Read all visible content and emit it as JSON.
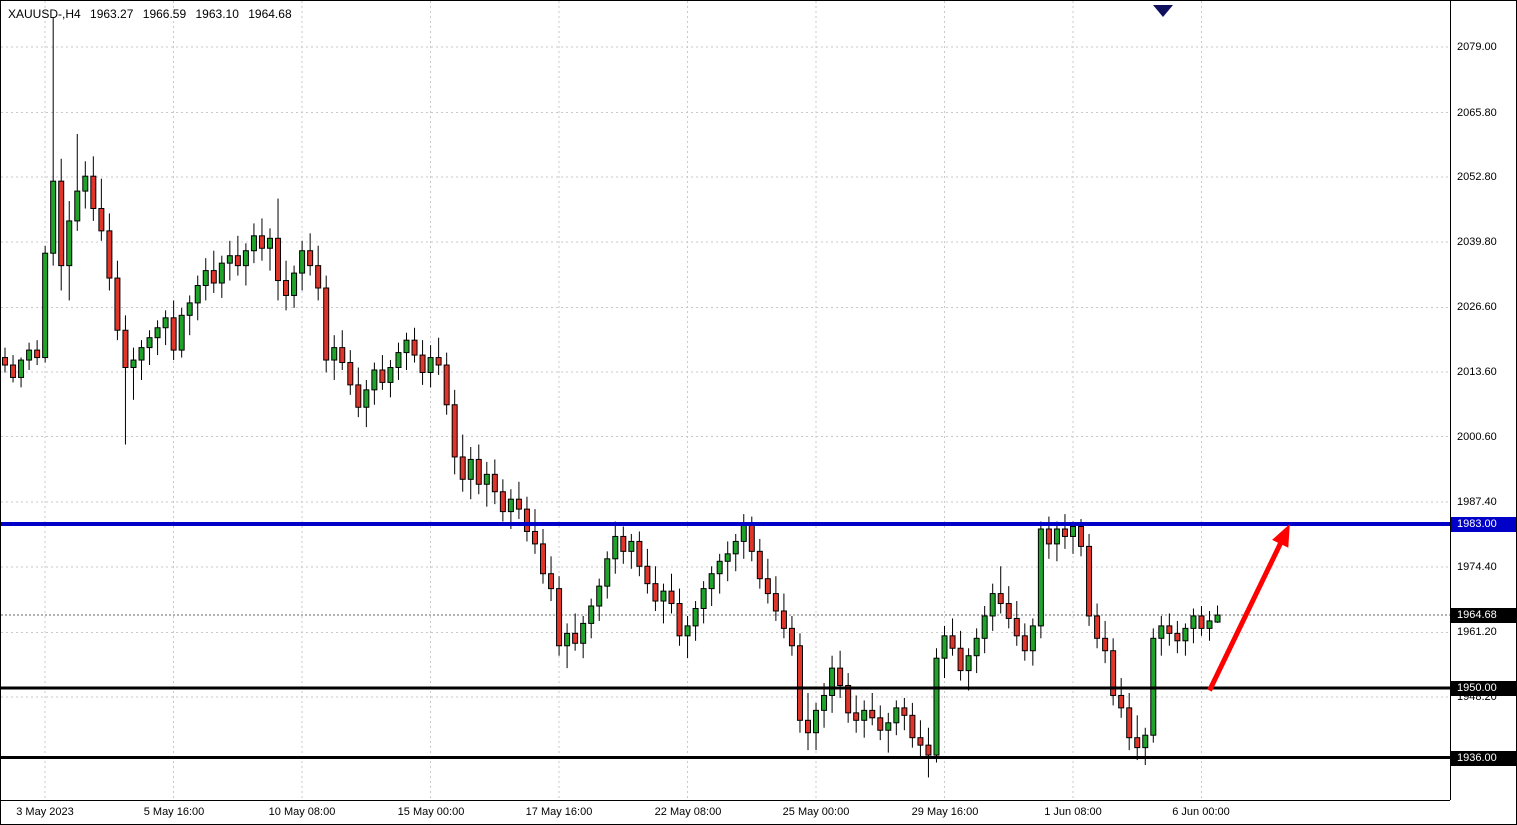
{
  "header": {
    "title": "XAUUSD-,H4",
    "open": "1963.27",
    "high": "1966.59",
    "low": "1963.10",
    "close": "1964.68"
  },
  "colors": {
    "background": "#FFFFFF",
    "candle_up": "#1FA32B",
    "candle_down": "#E0352B",
    "candle_border": "#000000",
    "grid": "#C9C9C9",
    "current_price_line": "#666666",
    "current_price_badge": "#000000",
    "arrow": "#FF0000",
    "shift_marker": "#10105E",
    "axis_text": "#000000"
  },
  "chart_data": {
    "type": "candlestick",
    "title": "XAUUSD-,H4",
    "symbol": "XAUUSD-",
    "timeframe": "H4",
    "last": {
      "open": 1963.27,
      "high": 1966.59,
      "low": 1963.1,
      "close": 1964.68
    },
    "visible_price_range": [
      1927,
      2086
    ],
    "grid": true,
    "price_ticks": [
      {
        "label": "2079.00",
        "value": 2079.0
      },
      {
        "label": "2065.80",
        "value": 2065.8
      },
      {
        "label": "2052.80",
        "value": 2052.8
      },
      {
        "label": "2039.80",
        "value": 2039.8
      },
      {
        "label": "2026.60",
        "value": 2026.6
      },
      {
        "label": "2013.60",
        "value": 2013.6
      },
      {
        "label": "2000.60",
        "value": 2000.6
      },
      {
        "label": "1987.40",
        "value": 1987.4
      },
      {
        "label": "1974.40",
        "value": 1974.4
      },
      {
        "label": "1961.20",
        "value": 1961.2
      },
      {
        "label": "1948.20",
        "value": 1948.2
      }
    ],
    "time_ticks": [
      {
        "label": "3 May 2023",
        "index": 5
      },
      {
        "label": "5 May 16:00",
        "index": 21
      },
      {
        "label": "10 May 08:00",
        "index": 37
      },
      {
        "label": "15 May 00:00",
        "index": 53
      },
      {
        "label": "17 May 16:00",
        "index": 69
      },
      {
        "label": "22 May 08:00",
        "index": 85
      },
      {
        "label": "25 May 00:00",
        "index": 101
      },
      {
        "label": "29 May 16:00",
        "index": 117
      },
      {
        "label": "1 Jun 08:00",
        "index": 133
      },
      {
        "label": "6 Jun 00:00",
        "index": 149
      }
    ],
    "levels": [
      {
        "label": "1983.00",
        "value": 1983.0,
        "color": "#0000C8",
        "text_color": "#FFFFFF",
        "thickness": 4,
        "name": "resistance-line-1983"
      },
      {
        "label": "1950.00",
        "value": 1950.0,
        "color": "#000000",
        "text_color": "#FFFFFF",
        "thickness": 3,
        "name": "support-line-1950"
      },
      {
        "label": "1936.00",
        "value": 1936.0,
        "color": "#000000",
        "text_color": "#FFFFFF",
        "thickness": 3,
        "name": "support-line-1936"
      }
    ],
    "current_price": {
      "label": "1964.68",
      "value": 1964.68
    },
    "arrow": {
      "from_index": 150,
      "from_price": 1949.5,
      "to_index": 160,
      "to_price": 1983.0,
      "color": "#FF0000"
    },
    "ohlc": [
      [
        2016.5,
        2018.5,
        2013.5,
        2015.0
      ],
      [
        2015.0,
        2017.0,
        2011.5,
        2012.5
      ],
      [
        2012.5,
        2016.5,
        2010.5,
        2016.0
      ],
      [
        2016.0,
        2019.5,
        2014.0,
        2018.0
      ],
      [
        2018.0,
        2020.0,
        2015.0,
        2016.5
      ],
      [
        2016.5,
        2039.0,
        2015.5,
        2037.5
      ],
      [
        2037.5,
        2085.0,
        2035.0,
        2052.0
      ],
      [
        2052.0,
        2056.5,
        2030.0,
        2035.0
      ],
      [
        2035.0,
        2048.0,
        2028.0,
        2044.0
      ],
      [
        2044.0,
        2061.5,
        2042.0,
        2050.0
      ],
      [
        2050.0,
        2056.0,
        2046.5,
        2053.0
      ],
      [
        2053.0,
        2057.0,
        2044.0,
        2046.5
      ],
      [
        2046.5,
        2052.5,
        2040.0,
        2042.0
      ],
      [
        2042.0,
        2045.5,
        2030.0,
        2032.5
      ],
      [
        2032.5,
        2036.0,
        2020.0,
        2022.0
      ],
      [
        2022.0,
        2025.0,
        1999.0,
        2014.5
      ],
      [
        2014.5,
        2018.5,
        2008.0,
        2016.0
      ],
      [
        2016.0,
        2020.0,
        2012.0,
        2018.5
      ],
      [
        2018.5,
        2022.0,
        2015.0,
        2020.5
      ],
      [
        2020.5,
        2024.0,
        2017.0,
        2022.5
      ],
      [
        2022.5,
        2026.0,
        2019.0,
        2024.5
      ],
      [
        2024.5,
        2028.0,
        2016.0,
        2018.0
      ],
      [
        2018.0,
        2026.5,
        2016.5,
        2025.0
      ],
      [
        2025.0,
        2029.0,
        2021.0,
        2027.5
      ],
      [
        2027.5,
        2033.0,
        2024.0,
        2031.0
      ],
      [
        2031.0,
        2036.5,
        2028.0,
        2034.0
      ],
      [
        2034.0,
        2038.0,
        2029.5,
        2031.5
      ],
      [
        2031.5,
        2037.0,
        2028.5,
        2035.5
      ],
      [
        2035.5,
        2040.0,
        2032.0,
        2037.0
      ],
      [
        2037.0,
        2041.0,
        2033.0,
        2035.0
      ],
      [
        2035.0,
        2039.5,
        2031.0,
        2038.0
      ],
      [
        2038.0,
        2043.5,
        2035.5,
        2041.0
      ],
      [
        2041.0,
        2044.5,
        2036.0,
        2038.5
      ],
      [
        2038.5,
        2042.5,
        2034.0,
        2040.5
      ],
      [
        2040.5,
        2048.5,
        2028.0,
        2032.0
      ],
      [
        2032.0,
        2036.0,
        2026.0,
        2029.0
      ],
      [
        2029.0,
        2035.0,
        2026.5,
        2033.5
      ],
      [
        2033.5,
        2040.0,
        2030.0,
        2038.0
      ],
      [
        2038.0,
        2041.5,
        2033.0,
        2035.0
      ],
      [
        2035.0,
        2039.0,
        2028.0,
        2030.5
      ],
      [
        2030.5,
        2033.0,
        2013.5,
        2016.0
      ],
      [
        2016.0,
        2021.0,
        2012.0,
        2018.5
      ],
      [
        2018.5,
        2022.0,
        2014.0,
        2015.5
      ],
      [
        2015.5,
        2018.0,
        2009.0,
        2011.0
      ],
      [
        2011.0,
        2014.5,
        2004.5,
        2006.5
      ],
      [
        2006.5,
        2012.0,
        2002.5,
        2010.0
      ],
      [
        2010.0,
        2015.5,
        2007.0,
        2014.0
      ],
      [
        2014.0,
        2017.0,
        2010.0,
        2011.5
      ],
      [
        2011.5,
        2016.0,
        2008.5,
        2014.5
      ],
      [
        2014.5,
        2019.5,
        2012.0,
        2017.5
      ],
      [
        2017.5,
        2021.5,
        2014.0,
        2020.0
      ],
      [
        2020.0,
        2022.5,
        2015.5,
        2017.0
      ],
      [
        2017.0,
        2020.0,
        2011.0,
        2013.5
      ],
      [
        2013.5,
        2019.0,
        2010.5,
        2016.5
      ],
      [
        2016.5,
        2020.5,
        2013.0,
        2015.0
      ],
      [
        2015.0,
        2017.5,
        2005.0,
        2007.0
      ],
      [
        2007.0,
        2010.0,
        1993.0,
        1996.5
      ],
      [
        1996.5,
        2001.0,
        1989.5,
        1992.0
      ],
      [
        1992.0,
        1998.5,
        1988.0,
        1996.0
      ],
      [
        1996.0,
        1999.0,
        1989.0,
        1991.0
      ],
      [
        1991.0,
        1995.5,
        1986.5,
        1993.0
      ],
      [
        1993.0,
        1996.0,
        1987.0,
        1989.5
      ],
      [
        1989.5,
        1992.0,
        1983.5,
        1985.5
      ],
      [
        1985.5,
        1990.0,
        1982.0,
        1988.0
      ],
      [
        1988.0,
        1991.5,
        1984.0,
        1986.0
      ],
      [
        1986.0,
        1988.5,
        1979.5,
        1981.5
      ],
      [
        1981.5,
        1986.0,
        1977.0,
        1979.0
      ],
      [
        1979.0,
        1982.0,
        1971.0,
        1973.0
      ],
      [
        1973.0,
        1976.5,
        1967.5,
        1970.0
      ],
      [
        1970.0,
        1972.5,
        1956.5,
        1958.5
      ],
      [
        1958.5,
        1963.0,
        1954.0,
        1961.0
      ],
      [
        1961.0,
        1965.0,
        1957.5,
        1959.0
      ],
      [
        1959.0,
        1964.5,
        1956.0,
        1963.0
      ],
      [
        1963.0,
        1968.0,
        1960.0,
        1966.5
      ],
      [
        1966.5,
        1972.0,
        1963.5,
        1970.5
      ],
      [
        1970.5,
        1977.5,
        1968.0,
        1976.0
      ],
      [
        1976.0,
        1983.5,
        1973.0,
        1980.5
      ],
      [
        1980.5,
        1982.5,
        1975.0,
        1977.5
      ],
      [
        1977.5,
        1981.0,
        1974.0,
        1979.5
      ],
      [
        1979.5,
        1981.5,
        1972.5,
        1974.5
      ],
      [
        1974.5,
        1978.0,
        1969.0,
        1971.0
      ],
      [
        1971.0,
        1974.5,
        1965.5,
        1967.5
      ],
      [
        1967.5,
        1971.0,
        1963.0,
        1969.5
      ],
      [
        1969.5,
        1973.0,
        1965.0,
        1967.0
      ],
      [
        1967.0,
        1970.0,
        1958.5,
        1960.5
      ],
      [
        1960.5,
        1964.5,
        1956.0,
        1962.5
      ],
      [
        1962.5,
        1967.5,
        1959.5,
        1966.0
      ],
      [
        1966.0,
        1971.5,
        1963.0,
        1970.0
      ],
      [
        1970.0,
        1974.5,
        1966.5,
        1973.0
      ],
      [
        1973.0,
        1977.0,
        1969.0,
        1975.5
      ],
      [
        1975.5,
        1979.5,
        1971.5,
        1977.0
      ],
      [
        1977.0,
        1981.0,
        1973.5,
        1979.5
      ],
      [
        1979.5,
        1985.0,
        1976.0,
        1983.0
      ],
      [
        1983.0,
        1984.5,
        1975.5,
        1977.5
      ],
      [
        1977.5,
        1980.0,
        1970.0,
        1972.0
      ],
      [
        1972.0,
        1976.0,
        1967.0,
        1969.0
      ],
      [
        1969.0,
        1972.5,
        1963.5,
        1965.5
      ],
      [
        1965.5,
        1969.0,
        1960.0,
        1962.0
      ],
      [
        1962.0,
        1964.5,
        1956.5,
        1958.5
      ],
      [
        1958.5,
        1961.0,
        1941.0,
        1943.5
      ],
      [
        1943.5,
        1949.0,
        1937.5,
        1941.0
      ],
      [
        1941.0,
        1947.0,
        1937.5,
        1945.5
      ],
      [
        1945.5,
        1951.0,
        1942.0,
        1948.5
      ],
      [
        1948.5,
        1956.5,
        1945.0,
        1954.0
      ],
      [
        1954.0,
        1957.5,
        1948.0,
        1950.5
      ],
      [
        1950.5,
        1953.0,
        1943.0,
        1945.0
      ],
      [
        1945.0,
        1948.5,
        1941.0,
        1943.5
      ],
      [
        1943.5,
        1947.5,
        1940.0,
        1945.5
      ],
      [
        1945.5,
        1949.0,
        1942.5,
        1944.0
      ],
      [
        1944.0,
        1946.5,
        1939.5,
        1941.5
      ],
      [
        1941.5,
        1945.0,
        1937.0,
        1943.0
      ],
      [
        1943.0,
        1947.5,
        1940.5,
        1946.0
      ],
      [
        1946.0,
        1948.0,
        1941.5,
        1944.5
      ],
      [
        1944.5,
        1947.0,
        1938.0,
        1940.0
      ],
      [
        1940.0,
        1943.5,
        1936.0,
        1938.5
      ],
      [
        1938.5,
        1942.0,
        1932.0,
        1936.5
      ],
      [
        1936.5,
        1958.0,
        1935.0,
        1956.0
      ],
      [
        1956.0,
        1962.5,
        1952.0,
        1960.5
      ],
      [
        1960.5,
        1964.0,
        1956.5,
        1958.0
      ],
      [
        1958.0,
        1961.5,
        1951.5,
        1953.5
      ],
      [
        1953.5,
        1958.0,
        1949.5,
        1956.5
      ],
      [
        1956.5,
        1962.0,
        1953.0,
        1960.0
      ],
      [
        1960.0,
        1966.5,
        1957.0,
        1964.5
      ],
      [
        1964.5,
        1971.0,
        1961.5,
        1969.0
      ],
      [
        1969.0,
        1974.5,
        1965.0,
        1967.0
      ],
      [
        1967.0,
        1970.5,
        1962.0,
        1964.0
      ],
      [
        1964.0,
        1967.5,
        1958.5,
        1960.5
      ],
      [
        1960.5,
        1963.0,
        1955.5,
        1957.5
      ],
      [
        1957.5,
        1964.0,
        1954.5,
        1962.5
      ],
      [
        1962.5,
        1983.5,
        1960.0,
        1982.0
      ],
      [
        1982.0,
        1984.5,
        1976.0,
        1979.0
      ],
      [
        1979.0,
        1983.5,
        1975.5,
        1982.0
      ],
      [
        1982.0,
        1985.0,
        1978.0,
        1980.5
      ],
      [
        1980.5,
        1983.5,
        1977.0,
        1982.5
      ],
      [
        1982.5,
        1984.0,
        1976.5,
        1978.5
      ],
      [
        1978.5,
        1981.0,
        1962.5,
        1964.5
      ],
      [
        1964.5,
        1967.0,
        1958.0,
        1960.0
      ],
      [
        1960.0,
        1963.5,
        1955.0,
        1957.5
      ],
      [
        1957.5,
        1960.0,
        1946.5,
        1948.5
      ],
      [
        1948.5,
        1952.0,
        1944.0,
        1946.0
      ],
      [
        1946.0,
        1949.0,
        1937.5,
        1940.0
      ],
      [
        1940.0,
        1944.5,
        1935.5,
        1938.0
      ],
      [
        1938.0,
        1942.0,
        1934.5,
        1940.5
      ],
      [
        1940.5,
        1962.0,
        1939.0,
        1960.0
      ],
      [
        1960.0,
        1964.5,
        1956.5,
        1962.5
      ],
      [
        1962.5,
        1965.0,
        1958.5,
        1961.0
      ],
      [
        1961.0,
        1963.5,
        1957.0,
        1959.5
      ],
      [
        1959.5,
        1963.0,
        1956.5,
        1962.0
      ],
      [
        1962.0,
        1966.0,
        1959.0,
        1964.5
      ],
      [
        1964.5,
        1966.5,
        1960.5,
        1962.0
      ],
      [
        1962.0,
        1965.5,
        1959.5,
        1963.5
      ],
      [
        1963.27,
        1966.59,
        1963.1,
        1964.68
      ]
    ]
  }
}
